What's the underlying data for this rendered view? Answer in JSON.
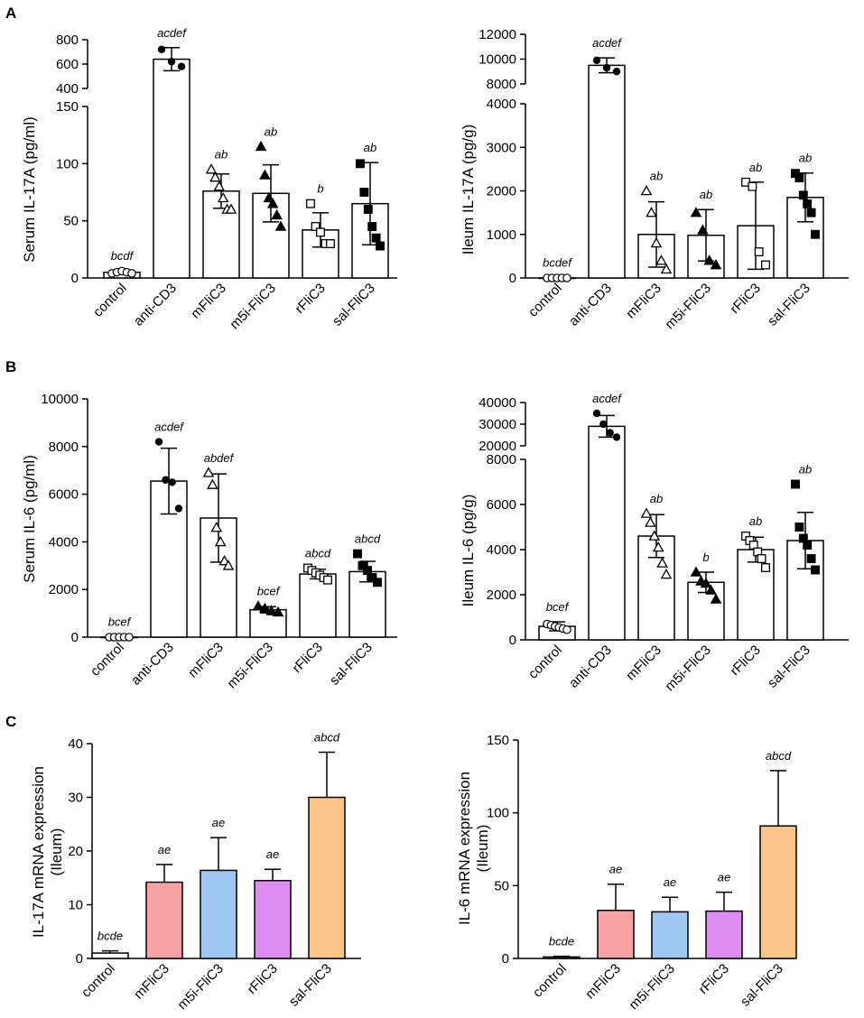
{
  "figure": {
    "panel_labels": [
      "A",
      "B",
      "C"
    ]
  },
  "colors": {
    "control": "#ffffff",
    "mFliC3": "#f7a3a3",
    "m5i-FliC3": "#9ec7f3",
    "rFliC3": "#dd8cf0",
    "sal-FliC3": "#fbc58a",
    "white": "#ffffff"
  },
  "chart_data": [
    {
      "id": "A-left",
      "type": "bar",
      "panel": "A",
      "ylabel": "Serum IL-17A (pg/ml)",
      "broken_axis": true,
      "ylim_lower": [
        0,
        150
      ],
      "ylim_upper": [
        400,
        800
      ],
      "yticks_lower": [
        0,
        50,
        100,
        150
      ],
      "yticks_upper": [
        400,
        600,
        800
      ],
      "categories": [
        "control",
        "anti-CD3",
        "mFliC3",
        "m5i-FliC3",
        "rFliC3",
        "sal-FliC3"
      ],
      "values": [
        5,
        640,
        76,
        74,
        42,
        65
      ],
      "errors": [
        1.5,
        95,
        15,
        25,
        15,
        36
      ],
      "significance": [
        "bcdf",
        "acdef",
        "ab",
        "ab",
        "b",
        "ab"
      ],
      "markers": [
        "o",
        "filled-circle",
        "triangle-open",
        "triangle-filled",
        "square-open",
        "square-filled"
      ],
      "points": [
        [
          4,
          5,
          6,
          5,
          4
        ],
        [
          720,
          620,
          580
        ],
        [
          95,
          88,
          80,
          70,
          60,
          60
        ],
        [
          115,
          90,
          70,
          65,
          55,
          45
        ],
        [
          65,
          45,
          40,
          30,
          30
        ],
        [
          100,
          75,
          60,
          45,
          35,
          28
        ]
      ]
    },
    {
      "id": "A-right",
      "type": "bar",
      "panel": "A",
      "ylabel": "Ileum IL-17A (pg/g)",
      "broken_axis": true,
      "ylim_lower": [
        0,
        4000
      ],
      "ylim_upper": [
        8000,
        12000
      ],
      "yticks_lower": [
        0,
        1000,
        2000,
        3000,
        4000
      ],
      "yticks_upper": [
        8000,
        10000,
        12000
      ],
      "categories": [
        "control",
        "anti-CD3",
        "mFliC3",
        "m5i-FliC3",
        "rFliC3",
        "sal-FliC3"
      ],
      "values": [
        0,
        9500,
        1000,
        980,
        1200,
        1850
      ],
      "errors": [
        15,
        600,
        750,
        590,
        1000,
        560
      ],
      "significance": [
        "bcdef",
        "acdef",
        "ab",
        "ab",
        "ab",
        "ab"
      ],
      "markers": [
        "o",
        "filled-circle",
        "triangle-open",
        "triangle-filled",
        "square-open",
        "square-filled"
      ],
      "points": [
        [
          0,
          0,
          0,
          0,
          0
        ],
        [
          9900,
          9300,
          9000
        ],
        [
          2000,
          1500,
          800,
          400,
          200
        ],
        [
          1500,
          1100,
          400,
          300
        ],
        [
          2200,
          2100,
          600,
          300
        ],
        [
          2400,
          2300,
          1900,
          1700,
          1500,
          1000
        ]
      ]
    },
    {
      "id": "B-left",
      "type": "bar",
      "panel": "B",
      "ylabel": "Serum IL-6 (pg/ml)",
      "broken_axis": false,
      "ylim": [
        0,
        10000
      ],
      "yticks": [
        0,
        2000,
        4000,
        6000,
        8000,
        10000
      ],
      "categories": [
        "control",
        "anti-CD3",
        "mFliC3",
        "m5i-FliC3",
        "rFliC3",
        "sal-FliC3"
      ],
      "values": [
        0,
        6550,
        5000,
        1150,
        2650,
        2750
      ],
      "errors": [
        10,
        1380,
        1850,
        130,
        200,
        430
      ],
      "significance": [
        "bcef",
        "acdef",
        "abdef",
        "bcef",
        "abcd",
        "abcd"
      ],
      "markers": [
        "o",
        "filled-circle",
        "triangle-open",
        "triangle-filled",
        "square-open",
        "square-filled"
      ],
      "points": [
        [
          0,
          0,
          0,
          0,
          0
        ],
        [
          8200,
          6600,
          6500,
          5400
        ],
        [
          6900,
          6400,
          4600,
          4000,
          3200,
          3000
        ],
        [
          1300,
          1200,
          1100,
          1050
        ],
        [
          2900,
          2800,
          2700,
          2600,
          2500,
          2400
        ],
        [
          3500,
          3000,
          2800,
          2500,
          2300
        ]
      ]
    },
    {
      "id": "B-right",
      "type": "bar",
      "panel": "B",
      "ylabel": "Ileum  IL-6 (pg/g)",
      "broken_axis": true,
      "ylim_lower": [
        0,
        8000
      ],
      "ylim_upper": [
        20000,
        40000
      ],
      "yticks_lower": [
        0,
        2000,
        4000,
        6000,
        8000
      ],
      "yticks_upper": [
        20000,
        30000,
        40000
      ],
      "categories": [
        "control",
        "anti-CD3",
        "mFliC3",
        "m5i-FliC3",
        "rFliC3",
        "sal-FliC3"
      ],
      "values": [
        600,
        29000,
        4600,
        2550,
        4000,
        4400
      ],
      "errors": [
        200,
        5000,
        950,
        450,
        550,
        1250
      ],
      "significance": [
        "bcef",
        "acdef",
        "ab",
        "b",
        "ab",
        "ab"
      ],
      "markers": [
        "o",
        "filled-circle",
        "triangle-open",
        "triangle-filled",
        "square-open",
        "square-filled"
      ],
      "points": [
        [
          700,
          650,
          600,
          550,
          500,
          450
        ],
        [
          35000,
          30000,
          26000,
          24000
        ],
        [
          5600,
          5200,
          4600,
          4100,
          3400,
          2900
        ],
        [
          3000,
          2600,
          2500,
          2200,
          1800
        ],
        [
          4600,
          4400,
          4200,
          3900,
          3600,
          3200
        ],
        [
          6900,
          5000,
          4500,
          4200,
          3600,
          3100
        ]
      ]
    },
    {
      "id": "C-left",
      "type": "bar",
      "panel": "C",
      "ylabel": "IL-17A mRNA expression (Ileum)",
      "ylabel_lines": [
        "IL-17A mRNA expression",
        "(Ileum)"
      ],
      "broken_axis": false,
      "ylim": [
        0,
        40
      ],
      "yticks": [
        0,
        10,
        20,
        30,
        40
      ],
      "categories": [
        "control",
        "mFliC3",
        "m5i-FliC3",
        "rFliC3",
        "sal-FliC3"
      ],
      "values": [
        1,
        14.2,
        16.4,
        14.5,
        30
      ],
      "errors": [
        0.4,
        3.3,
        6.1,
        2.1,
        8.4
      ],
      "significance": [
        "bcde",
        "ae",
        "ae",
        "ae",
        "abcd"
      ],
      "bar_colors": [
        "#ffffff",
        "#f7a3a3",
        "#9ec7f3",
        "#dd8cf0",
        "#fbc58a"
      ]
    },
    {
      "id": "C-right",
      "type": "bar",
      "panel": "C",
      "ylabel": "IL-6 mRNA expression (Ileum)",
      "ylabel_lines": [
        "IL-6 mRNA expression",
        "(Ileum)"
      ],
      "broken_axis": false,
      "ylim": [
        0,
        150
      ],
      "yticks": [
        0,
        50,
        100,
        150
      ],
      "categories": [
        "control",
        "mFliC3",
        "m5i-FliC3",
        "rFliC3",
        "sal-FliC3"
      ],
      "values": [
        1,
        33,
        32,
        32.5,
        91
      ],
      "errors": [
        0.5,
        18,
        10,
        13,
        38
      ],
      "significance": [
        "bcde",
        "ae",
        "ae",
        "ae",
        "abcd"
      ],
      "bar_colors": [
        "#ffffff",
        "#f7a3a3",
        "#9ec7f3",
        "#dd8cf0",
        "#fbc58a"
      ]
    }
  ]
}
